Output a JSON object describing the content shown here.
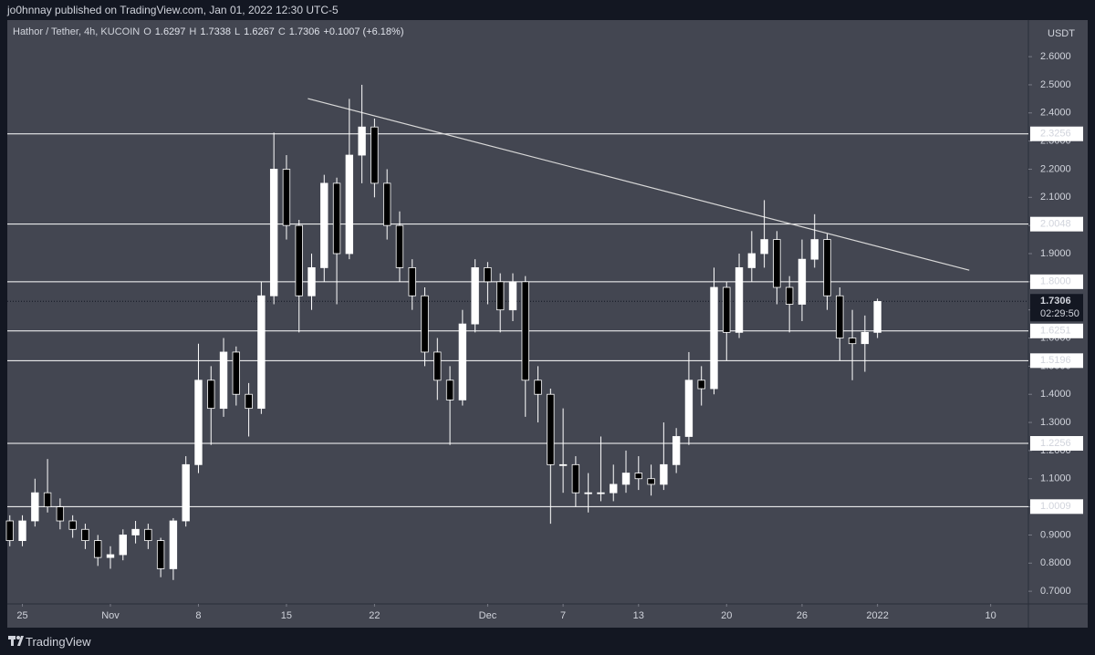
{
  "header": {
    "publisher": "jo0hnnay published on TradingView.com, Jan 01, 2022 12:30 UTC-5"
  },
  "footer": {
    "brand": "TradingView"
  },
  "chart_data": {
    "type": "candlestick",
    "symbol": "Hathor / Tether, 4h, KUCOIN",
    "ohlc_legend": [
      {
        "label": "O",
        "value": 1.6297
      },
      {
        "label": "H",
        "value": 1.7338
      },
      {
        "label": "L",
        "value": 1.6267
      },
      {
        "label": "C",
        "value": 1.7306
      }
    ],
    "change": "+0.1007 (+6.18%)",
    "currency": "USDT",
    "last_price": 1.7306,
    "countdown": "02:29:50",
    "colors": {
      "up": "#ffffff",
      "down": "#000000",
      "wick": "#ffffff",
      "level": "#ffffff",
      "trendline": "#d8d8d8",
      "background": "#434651"
    },
    "x": [
      -1,
      0,
      1,
      2,
      3,
      4,
      5,
      6,
      7,
      8,
      9,
      10,
      11,
      12,
      13,
      14,
      15,
      16,
      17,
      18,
      19,
      20,
      21,
      22,
      23,
      24,
      25,
      26,
      27,
      28,
      29,
      30,
      31,
      32,
      33,
      34,
      35,
      36,
      37,
      38,
      39,
      40,
      41,
      42,
      43,
      44,
      45,
      46,
      47,
      48,
      49,
      50,
      51,
      52,
      53,
      54,
      55,
      56,
      57,
      58,
      59,
      60,
      61,
      62,
      63,
      64,
      65,
      66,
      67,
      68
    ],
    "open": [
      0.95,
      0.88,
      0.95,
      1.05,
      1.0,
      0.95,
      0.92,
      0.88,
      0.82,
      0.83,
      0.9,
      0.92,
      0.88,
      0.78,
      0.95,
      1.15,
      1.45,
      1.35,
      1.55,
      1.4,
      1.35,
      1.75,
      2.2,
      2.0,
      1.75,
      1.85,
      2.15,
      1.9,
      2.25,
      2.35,
      2.15,
      2.0,
      1.85,
      1.75,
      1.55,
      1.45,
      1.38,
      1.65,
      1.85,
      1.8,
      1.7,
      1.8,
      1.45,
      1.4,
      1.15,
      1.15,
      1.05,
      1.05,
      1.05,
      1.08,
      1.12,
      1.1,
      1.08,
      1.15,
      1.25,
      1.45,
      1.42,
      1.78,
      1.62,
      1.85,
      1.9,
      1.95,
      1.78,
      1.72,
      1.88,
      1.95,
      1.75,
      1.6,
      1.58,
      1.62
    ],
    "high": [
      0.97,
      0.97,
      1.1,
      1.17,
      1.03,
      0.97,
      0.94,
      0.9,
      0.86,
      0.92,
      0.95,
      0.94,
      0.89,
      0.96,
      1.18,
      1.58,
      1.5,
      1.6,
      1.57,
      1.44,
      1.8,
      2.33,
      2.25,
      2.02,
      1.9,
      2.18,
      2.17,
      2.45,
      2.5,
      2.38,
      2.2,
      2.05,
      1.88,
      1.78,
      1.6,
      1.5,
      1.7,
      1.88,
      1.87,
      1.83,
      1.83,
      1.82,
      1.5,
      1.42,
      1.35,
      1.18,
      1.12,
      1.25,
      1.15,
      1.2,
      1.18,
      1.15,
      1.3,
      1.28,
      1.55,
      1.5,
      1.85,
      1.8,
      1.9,
      1.98,
      2.09,
      1.98,
      1.82,
      1.95,
      2.04,
      1.97,
      1.78,
      1.7,
      1.68,
      1.74
    ],
    "low": [
      0.86,
      0.86,
      0.93,
      0.98,
      0.92,
      0.89,
      0.85,
      0.79,
      0.78,
      0.81,
      0.87,
      0.85,
      0.75,
      0.74,
      0.93,
      1.12,
      1.22,
      1.32,
      1.36,
      1.25,
      1.33,
      1.72,
      1.95,
      1.62,
      1.7,
      1.8,
      1.72,
      1.88,
      2.15,
      2.1,
      1.95,
      1.8,
      1.7,
      1.5,
      1.38,
      1.22,
      1.36,
      1.62,
      1.72,
      1.62,
      1.66,
      1.32,
      1.3,
      0.94,
      1.05,
      1.0,
      0.98,
      1.02,
      1.02,
      1.05,
      1.06,
      1.04,
      1.06,
      1.12,
      1.22,
      1.36,
      1.4,
      1.52,
      1.6,
      1.8,
      1.85,
      1.72,
      1.62,
      1.66,
      1.85,
      1.7,
      1.52,
      1.45,
      1.48,
      1.6
    ],
    "close": [
      0.88,
      0.95,
      1.05,
      1.0,
      0.95,
      0.92,
      0.88,
      0.82,
      0.83,
      0.9,
      0.92,
      0.88,
      0.78,
      0.95,
      1.15,
      1.45,
      1.35,
      1.55,
      1.4,
      1.35,
      1.75,
      2.2,
      2.0,
      1.75,
      1.85,
      2.15,
      1.9,
      2.25,
      2.35,
      2.15,
      2.0,
      1.85,
      1.75,
      1.55,
      1.45,
      1.38,
      1.65,
      1.85,
      1.8,
      1.7,
      1.8,
      1.45,
      1.4,
      1.15,
      1.15,
      1.05,
      1.05,
      1.05,
      1.08,
      1.12,
      1.1,
      1.08,
      1.15,
      1.25,
      1.45,
      1.42,
      1.78,
      1.62,
      1.85,
      1.9,
      1.95,
      1.78,
      1.72,
      1.88,
      1.95,
      1.75,
      1.6,
      1.58,
      1.62,
      1.73
    ],
    "levels": [
      2.3256,
      2.0048,
      {
        "value": 1.8,
        "label": "1.8000"
      },
      1.6251,
      1.5196,
      1.2256,
      1.0009
    ],
    "trendline": {
      "x": [
        22.7,
        75.3
      ],
      "y": [
        2.451,
        1.841
      ]
    },
    "xlim": [
      -1.2,
      80
    ],
    "ylim": [
      0.655,
      2.73
    ],
    "xticks": [
      {
        "value": 0,
        "label": "25"
      },
      {
        "value": 7,
        "label": "Nov"
      },
      {
        "value": 14,
        "label": "8"
      },
      {
        "value": 21,
        "label": "15"
      },
      {
        "value": 28,
        "label": "22"
      },
      {
        "value": 37,
        "label": "Dec"
      },
      {
        "value": 43,
        "label": "7"
      },
      {
        "value": 49,
        "label": "13"
      },
      {
        "value": 56,
        "label": "20"
      },
      {
        "value": 62,
        "label": "26"
      },
      {
        "value": 68,
        "label": "2022"
      },
      {
        "value": 77,
        "label": "10"
      }
    ],
    "yticks": [
      {
        "value": 0.7,
        "label": "0.7000"
      },
      {
        "value": 0.8,
        "label": "0.8000"
      },
      {
        "value": 0.9,
        "label": "0.9000"
      },
      {
        "value": 1.0,
        "label": "1.0000"
      },
      {
        "value": 1.1,
        "label": "1.1000"
      },
      {
        "value": 1.2,
        "label": "1.2000"
      },
      {
        "value": 1.3,
        "label": "1.3000"
      },
      {
        "value": 1.4,
        "label": "1.4000"
      },
      {
        "value": 1.5,
        "label": "1.5000"
      },
      {
        "value": 1.6,
        "label": "1.6000"
      },
      {
        "value": 1.7,
        "label": "1.7000"
      },
      {
        "value": 1.8,
        "label": "1.8000"
      },
      {
        "value": 1.9,
        "label": "1.9000"
      },
      {
        "value": 2.0,
        "label": "2.0000"
      },
      {
        "value": 2.1,
        "label": "2.1000"
      },
      {
        "value": 2.2,
        "label": "2.2000"
      },
      {
        "value": 2.3,
        "label": "2.3000"
      },
      {
        "value": 2.4,
        "label": "2.4000"
      },
      {
        "value": 2.5,
        "label": "2.5000"
      },
      {
        "value": 2.6,
        "label": "2.6000"
      }
    ]
  }
}
